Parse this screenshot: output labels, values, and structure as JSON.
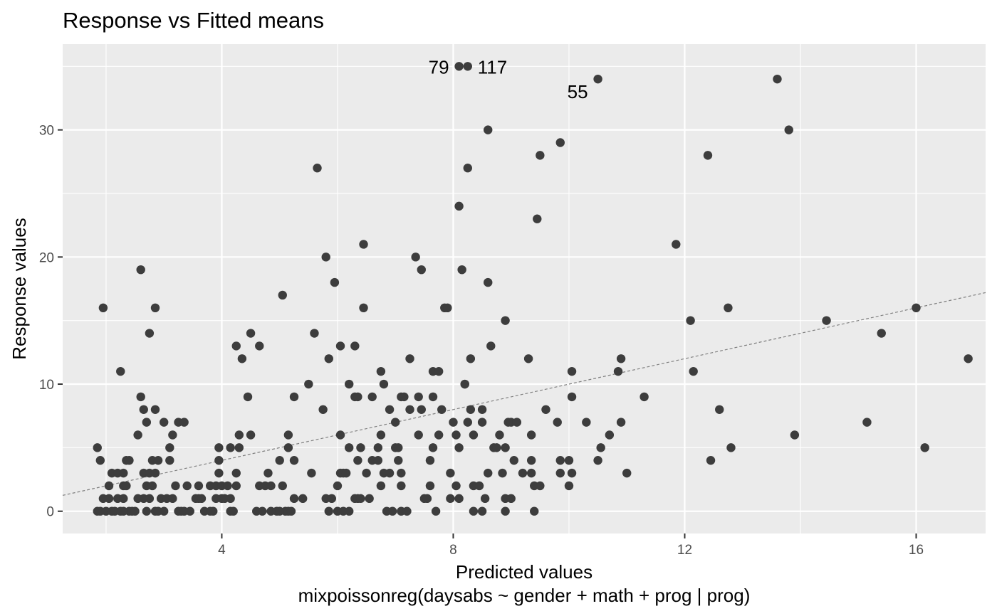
{
  "colors": {
    "panel_background": "#ebebeb",
    "grid_major": "#ffffff",
    "point": "#3d3d3d",
    "reference_line": "#808080",
    "tick_text": "#4d4d4d"
  },
  "chart_data": {
    "type": "scatter",
    "title": "Response vs Fitted means",
    "xlabel": "Predicted values",
    "xlabel_sub": "mixpoissonreg(daysabs ~ gender + math + prog | prog)",
    "ylabel": "Response values",
    "xlim": [
      1.25,
      17.2
    ],
    "ylim": [
      -1.75,
      36.75
    ],
    "x_ticks": [
      4,
      8,
      12,
      16
    ],
    "y_ticks": [
      0,
      10,
      20,
      30
    ],
    "x_tick_labels": [
      "4",
      "8",
      "12",
      "16"
    ],
    "y_tick_labels": [
      "0",
      "10",
      "20",
      "30"
    ],
    "grid": true,
    "reference_line": {
      "style": "dashed",
      "intercept": 0,
      "slope": 1
    },
    "annotations": [
      {
        "label": "79",
        "x": 8.1,
        "y": 35
      },
      {
        "label": "117",
        "x": 8.25,
        "y": 35
      },
      {
        "label": "55",
        "x": 10.5,
        "y": 34
      }
    ],
    "points": [
      [
        1.85,
        5
      ],
      [
        1.9,
        4
      ],
      [
        1.95,
        16
      ],
      [
        1.85,
        0
      ],
      [
        1.9,
        0
      ],
      [
        1.95,
        1
      ],
      [
        2.0,
        0
      ],
      [
        2.05,
        2
      ],
      [
        2.05,
        1
      ],
      [
        2.1,
        3
      ],
      [
        2.1,
        0
      ],
      [
        2.15,
        0
      ],
      [
        2.2,
        3
      ],
      [
        2.2,
        1
      ],
      [
        2.25,
        11
      ],
      [
        2.25,
        0
      ],
      [
        2.3,
        3
      ],
      [
        2.3,
        2
      ],
      [
        2.35,
        4
      ],
      [
        2.35,
        2
      ],
      [
        2.3,
        1
      ],
      [
        2.3,
        0
      ],
      [
        2.4,
        0
      ],
      [
        2.4,
        4
      ],
      [
        2.45,
        0
      ],
      [
        2.5,
        0
      ],
      [
        2.55,
        6
      ],
      [
        2.55,
        1
      ],
      [
        2.6,
        19
      ],
      [
        2.6,
        9
      ],
      [
        2.65,
        8
      ],
      [
        2.65,
        3
      ],
      [
        2.65,
        1
      ],
      [
        2.7,
        7
      ],
      [
        2.7,
        2
      ],
      [
        2.7,
        0
      ],
      [
        2.75,
        14
      ],
      [
        2.75,
        3
      ],
      [
        2.75,
        1
      ],
      [
        2.8,
        4
      ],
      [
        2.8,
        2
      ],
      [
        2.85,
        16
      ],
      [
        2.85,
        8
      ],
      [
        2.85,
        3
      ],
      [
        2.85,
        0
      ],
      [
        2.9,
        4
      ],
      [
        2.95,
        1
      ],
      [
        2.9,
        0
      ],
      [
        3.0,
        7
      ],
      [
        3.0,
        0
      ],
      [
        3.05,
        1
      ],
      [
        3.1,
        5
      ],
      [
        3.1,
        4
      ],
      [
        3.15,
        6
      ],
      [
        3.15,
        1
      ],
      [
        3.2,
        2
      ],
      [
        3.25,
        7
      ],
      [
        3.25,
        0
      ],
      [
        3.3,
        0
      ],
      [
        3.35,
        7
      ],
      [
        3.4,
        2
      ],
      [
        3.35,
        0
      ],
      [
        3.45,
        0
      ],
      [
        3.55,
        1
      ],
      [
        3.6,
        2
      ],
      [
        3.6,
        1
      ],
      [
        3.65,
        1
      ],
      [
        3.7,
        0
      ],
      [
        3.8,
        2
      ],
      [
        3.85,
        0
      ],
      [
        3.8,
        0
      ],
      [
        3.9,
        2
      ],
      [
        3.9,
        1
      ],
      [
        3.95,
        5
      ],
      [
        3.95,
        4
      ],
      [
        3.95,
        3
      ],
      [
        4.0,
        1
      ],
      [
        4.0,
        2
      ],
      [
        4.05,
        1
      ],
      [
        4.1,
        2
      ],
      [
        4.15,
        5
      ],
      [
        4.15,
        1
      ],
      [
        4.15,
        0
      ],
      [
        4.2,
        0
      ],
      [
        4.25,
        13
      ],
      [
        4.25,
        3
      ],
      [
        4.25,
        2
      ],
      [
        4.3,
        6
      ],
      [
        4.3,
        5
      ],
      [
        4.35,
        12
      ],
      [
        4.45,
        9
      ],
      [
        4.5,
        14
      ],
      [
        4.5,
        6
      ],
      [
        4.6,
        0
      ],
      [
        4.65,
        13
      ],
      [
        4.65,
        2
      ],
      [
        4.7,
        0
      ],
      [
        4.75,
        2
      ],
      [
        4.8,
        3
      ],
      [
        4.85,
        0
      ],
      [
        4.85,
        2
      ],
      [
        4.95,
        0
      ],
      [
        5.0,
        0
      ],
      [
        5.0,
        4
      ],
      [
        5.05,
        17
      ],
      [
        5.05,
        2
      ],
      [
        5.1,
        0
      ],
      [
        5.15,
        0
      ],
      [
        5.15,
        6
      ],
      [
        5.15,
        5
      ],
      [
        5.2,
        0
      ],
      [
        5.25,
        9
      ],
      [
        5.25,
        4
      ],
      [
        5.25,
        1
      ],
      [
        5.4,
        1
      ],
      [
        5.5,
        10
      ],
      [
        5.55,
        3
      ],
      [
        5.6,
        14
      ],
      [
        5.65,
        27
      ],
      [
        5.75,
        8
      ],
      [
        5.8,
        20
      ],
      [
        5.85,
        12
      ],
      [
        5.8,
        1
      ],
      [
        5.85,
        0
      ],
      [
        5.9,
        1
      ],
      [
        5.95,
        18
      ],
      [
        6.0,
        2
      ],
      [
        6.0,
        0
      ],
      [
        6.05,
        6
      ],
      [
        6.05,
        3
      ],
      [
        6.05,
        13
      ],
      [
        6.1,
        3
      ],
      [
        6.1,
        0
      ],
      [
        6.15,
        3
      ],
      [
        6.2,
        10
      ],
      [
        6.2,
        5
      ],
      [
        6.2,
        0
      ],
      [
        6.3,
        9
      ],
      [
        6.3,
        1
      ],
      [
        6.3,
        13
      ],
      [
        6.35,
        9
      ],
      [
        6.35,
        4
      ],
      [
        6.35,
        1
      ],
      [
        6.4,
        5
      ],
      [
        6.4,
        1
      ],
      [
        6.45,
        21
      ],
      [
        6.45,
        16
      ],
      [
        6.5,
        3
      ],
      [
        6.55,
        1
      ],
      [
        6.6,
        9
      ],
      [
        6.6,
        4
      ],
      [
        6.7,
        5
      ],
      [
        6.7,
        4
      ],
      [
        6.75,
        11
      ],
      [
        6.75,
        6
      ],
      [
        6.75,
        2
      ],
      [
        6.8,
        10
      ],
      [
        6.8,
        3
      ],
      [
        6.85,
        0
      ],
      [
        6.9,
        3
      ],
      [
        6.9,
        8
      ],
      [
        6.95,
        0
      ],
      [
        7.0,
        5
      ],
      [
        7.0,
        7
      ],
      [
        7.05,
        5
      ],
      [
        7.05,
        4
      ],
      [
        7.1,
        9
      ],
      [
        7.1,
        3
      ],
      [
        7.1,
        2
      ],
      [
        7.1,
        0
      ],
      [
        7.15,
        9
      ],
      [
        7.2,
        0
      ],
      [
        7.25,
        12
      ],
      [
        7.25,
        8
      ],
      [
        7.35,
        20
      ],
      [
        7.4,
        9
      ],
      [
        7.4,
        6
      ],
      [
        7.45,
        19
      ],
      [
        7.45,
        8
      ],
      [
        7.5,
        1
      ],
      [
        7.55,
        1
      ],
      [
        7.6,
        4
      ],
      [
        7.6,
        2
      ],
      [
        7.65,
        11
      ],
      [
        7.65,
        9
      ],
      [
        7.65,
        5
      ],
      [
        7.7,
        0
      ],
      [
        7.75,
        11
      ],
      [
        7.75,
        6
      ],
      [
        7.8,
        8
      ],
      [
        7.85,
        16
      ],
      [
        7.9,
        16
      ],
      [
        7.95,
        3
      ],
      [
        7.95,
        1
      ],
      [
        8.0,
        7
      ],
      [
        8.05,
        6
      ],
      [
        8.05,
        2
      ],
      [
        8.1,
        5
      ],
      [
        8.1,
        1
      ],
      [
        8.1,
        24
      ],
      [
        8.15,
        19
      ],
      [
        8.2,
        10
      ],
      [
        8.25,
        7
      ],
      [
        8.3,
        12
      ],
      [
        8.35,
        6
      ],
      [
        8.35,
        2
      ],
      [
        8.35,
        0
      ],
      [
        8.45,
        2
      ],
      [
        8.5,
        0
      ],
      [
        8.5,
        8
      ],
      [
        8.5,
        7
      ],
      [
        8.55,
        1
      ],
      [
        8.6,
        3
      ],
      [
        8.6,
        18
      ],
      [
        8.6,
        30
      ],
      [
        8.65,
        13
      ],
      [
        8.7,
        5
      ],
      [
        8.75,
        5
      ],
      [
        8.8,
        6
      ],
      [
        8.85,
        3
      ],
      [
        8.9,
        15
      ],
      [
        8.9,
        5
      ],
      [
        8.9,
        1
      ],
      [
        8.9,
        0
      ],
      [
        8.95,
        7
      ],
      [
        9.0,
        1
      ],
      [
        9.0,
        7
      ],
      [
        9.05,
        4
      ],
      [
        9.1,
        7
      ],
      [
        9.2,
        3
      ],
      [
        9.3,
        12
      ],
      [
        9.35,
        3
      ],
      [
        9.35,
        6
      ],
      [
        9.35,
        4
      ],
      [
        9.4,
        2
      ],
      [
        9.4,
        0
      ],
      [
        9.45,
        23
      ],
      [
        9.5,
        2
      ],
      [
        9.5,
        28
      ],
      [
        9.6,
        8
      ],
      [
        9.8,
        7
      ],
      [
        9.85,
        29
      ],
      [
        9.85,
        4
      ],
      [
        9.85,
        3
      ],
      [
        10.0,
        4
      ],
      [
        10.05,
        11
      ],
      [
        10.05,
        9
      ],
      [
        10.05,
        3
      ],
      [
        10.0,
        2
      ],
      [
        10.3,
        7
      ],
      [
        10.5,
        4
      ],
      [
        10.55,
        5
      ],
      [
        10.7,
        6
      ],
      [
        10.85,
        11
      ],
      [
        10.9,
        12
      ],
      [
        10.9,
        7
      ],
      [
        11.0,
        3
      ],
      [
        11.3,
        9
      ],
      [
        11.85,
        21
      ],
      [
        12.1,
        15
      ],
      [
        12.15,
        11
      ],
      [
        12.4,
        28
      ],
      [
        12.45,
        4
      ],
      [
        12.6,
        8
      ],
      [
        12.75,
        16
      ],
      [
        12.8,
        5
      ],
      [
        13.6,
        34
      ],
      [
        13.8,
        30
      ],
      [
        13.9,
        6
      ],
      [
        14.45,
        15
      ],
      [
        15.15,
        7
      ],
      [
        15.4,
        14
      ],
      [
        16.0,
        16
      ],
      [
        16.15,
        5
      ],
      [
        16.9,
        12
      ],
      [
        8.1,
        35
      ],
      [
        8.25,
        35
      ],
      [
        10.5,
        34
      ],
      [
        8.25,
        27
      ],
      [
        8.3,
        8
      ],
      [
        8.2,
        10
      ]
    ]
  }
}
